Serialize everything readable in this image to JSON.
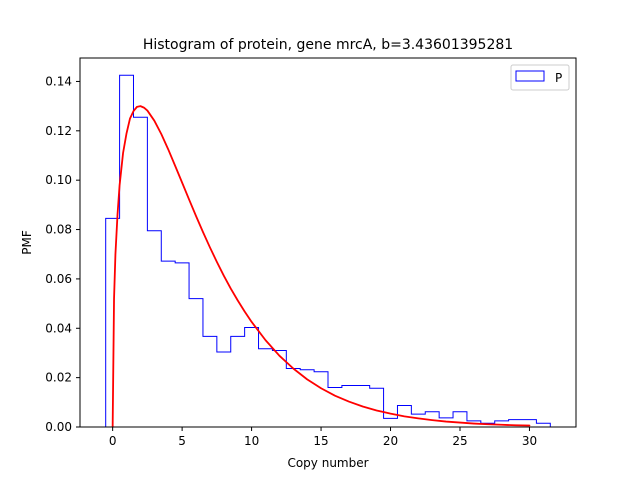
{
  "chart_data": {
    "type": "histogram",
    "title": "Histogram of protein, gene mrcA, b=3.43601395281",
    "xlabel": "Copy number",
    "ylabel": "PMF",
    "xlim": [
      -2.35,
      33.35
    ],
    "ylim": [
      0,
      0.1495
    ],
    "xticks": [
      0,
      5,
      10,
      15,
      20,
      25,
      30
    ],
    "yticks": [
      0.0,
      0.02,
      0.04,
      0.06,
      0.08,
      0.1,
      0.12,
      0.14
    ],
    "ytick_labels": [
      "0.00",
      "0.02",
      "0.04",
      "0.06",
      "0.08",
      "0.10",
      "0.12",
      "0.14"
    ],
    "legend": {
      "placement": "top-right",
      "entries": [
        {
          "label": "P",
          "color": "#0000ff"
        }
      ]
    },
    "histogram": {
      "name": "P",
      "color": "#0000ff",
      "bin_edges": [
        -0.5,
        0.5,
        1.5,
        2.5,
        3.5,
        4.5,
        5.5,
        6.5,
        7.5,
        8.5,
        9.5,
        10.5,
        11.5,
        12.5,
        13.5,
        14.5,
        15.5,
        16.5,
        17.5,
        18.5,
        19.5,
        20.5,
        21.5,
        22.5,
        23.5,
        24.5,
        25.5,
        26.5,
        27.5,
        28.5,
        29.5,
        30.5,
        31.5
      ],
      "values": [
        0.0845,
        0.1425,
        0.1255,
        0.0795,
        0.0672,
        0.0665,
        0.052,
        0.0367,
        0.0304,
        0.0367,
        0.0403,
        0.0317,
        0.031,
        0.0237,
        0.0232,
        0.0224,
        0.016,
        0.0168,
        0.0168,
        0.0157,
        0.0035,
        0.0087,
        0.0052,
        0.0062,
        0.0037,
        0.0062,
        0.0025,
        0.0015,
        0.0025,
        0.003,
        0.003,
        0.0015
      ]
    },
    "fit_curve": {
      "color": "#ff0000",
      "x": [
        0.0,
        0.1,
        0.2,
        0.35,
        0.5,
        0.75,
        1.0,
        1.25,
        1.5,
        1.75,
        2.0,
        2.25,
        2.5,
        3.0,
        3.5,
        4.0,
        4.5,
        5.0,
        5.5,
        6.0,
        6.5,
        7.0,
        7.5,
        8.0,
        8.5,
        9.0,
        9.5,
        10.0,
        11.0,
        12.0,
        13.0,
        14.0,
        15.0,
        16.0,
        17.0,
        18.0,
        19.0,
        20.0,
        21.0,
        22.0,
        23.0,
        24.0,
        25.0,
        26.0,
        27.0,
        28.0,
        29.0,
        30.0
      ],
      "y": [
        0.0,
        0.052,
        0.07,
        0.086,
        0.098,
        0.111,
        0.119,
        0.125,
        0.128,
        0.1297,
        0.13,
        0.1294,
        0.1282,
        0.1241,
        0.1187,
        0.1125,
        0.1058,
        0.099,
        0.0922,
        0.0855,
        0.079,
        0.0728,
        0.0669,
        0.0613,
        0.0561,
        0.0513,
        0.0468,
        0.0426,
        0.0352,
        0.0289,
        0.0237,
        0.0193,
        0.0157,
        0.0127,
        0.0103,
        0.0083,
        0.0067,
        0.0054,
        0.0043,
        0.0035,
        0.0028,
        0.0022,
        0.0018,
        0.0014,
        0.0011,
        0.0009,
        0.0007,
        0.0006
      ]
    }
  }
}
